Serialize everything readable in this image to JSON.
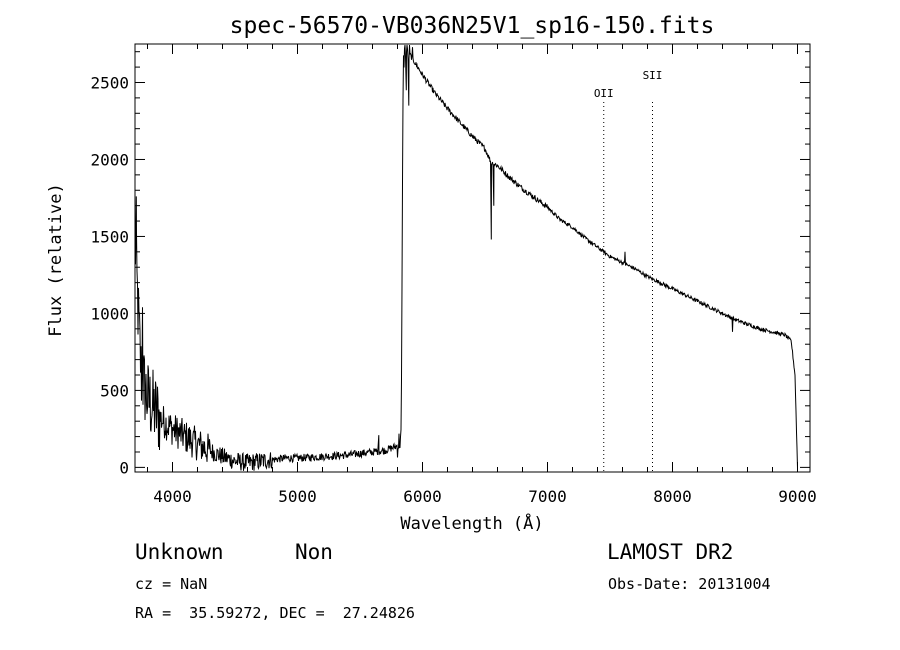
{
  "chart_data": {
    "type": "line",
    "title": "spec-56570-VB036N25V1_sp16-150.fits",
    "xlabel": "Wavelength (Å)",
    "ylabel": "Flux (relative)",
    "xlim": [
      3700,
      9100
    ],
    "ylim": [
      -30,
      2750
    ],
    "xticks": [
      4000,
      5000,
      6000,
      7000,
      8000,
      9000
    ],
    "yticks": [
      0,
      500,
      1000,
      1500,
      2000,
      2500
    ],
    "grid": false,
    "legend": "none",
    "line_color": "#000000",
    "anchors": [
      [
        3700,
        1500
      ],
      [
        3720,
        1100
      ],
      [
        3750,
        600
      ],
      [
        3800,
        450
      ],
      [
        3850,
        380
      ],
      [
        3900,
        320
      ],
      [
        4000,
        250
      ],
      [
        4100,
        200
      ],
      [
        4200,
        150
      ],
      [
        4300,
        110
      ],
      [
        4400,
        70
      ],
      [
        4500,
        40
      ],
      [
        4600,
        30
      ],
      [
        4700,
        40
      ],
      [
        4800,
        50
      ],
      [
        4900,
        60
      ],
      [
        5000,
        60
      ],
      [
        5100,
        65
      ],
      [
        5200,
        70
      ],
      [
        5300,
        75
      ],
      [
        5400,
        80
      ],
      [
        5500,
        90
      ],
      [
        5600,
        100
      ],
      [
        5700,
        110
      ],
      [
        5800,
        140
      ],
      [
        5830,
        200
      ],
      [
        5845,
        2600
      ],
      [
        5860,
        2730
      ],
      [
        5880,
        2700
      ],
      [
        5900,
        2680
      ],
      [
        6000,
        2550
      ],
      [
        6100,
        2430
      ],
      [
        6200,
        2330
      ],
      [
        6300,
        2240
      ],
      [
        6400,
        2150
      ],
      [
        6500,
        2070
      ],
      [
        6550,
        1980
      ],
      [
        6600,
        1960
      ],
      [
        6700,
        1880
      ],
      [
        6800,
        1810
      ],
      [
        6900,
        1750
      ],
      [
        7000,
        1690
      ],
      [
        7100,
        1610
      ],
      [
        7200,
        1560
      ],
      [
        7300,
        1490
      ],
      [
        7400,
        1430
      ],
      [
        7500,
        1370
      ],
      [
        7600,
        1330
      ],
      [
        7700,
        1290
      ],
      [
        7800,
        1240
      ],
      [
        7900,
        1200
      ],
      [
        8000,
        1160
      ],
      [
        8100,
        1120
      ],
      [
        8200,
        1080
      ],
      [
        8300,
        1040
      ],
      [
        8400,
        1000
      ],
      [
        8500,
        960
      ],
      [
        8600,
        930
      ],
      [
        8700,
        900
      ],
      [
        8800,
        880
      ],
      [
        8900,
        860
      ],
      [
        8950,
        820
      ],
      [
        8980,
        600
      ],
      [
        9000,
        0
      ]
    ],
    "features": [
      [
        3710,
        1760
      ],
      [
        3760,
        1040
      ],
      [
        5650,
        210
      ],
      [
        5870,
        2450
      ],
      [
        5890,
        2350
      ],
      [
        5920,
        2730
      ],
      [
        6550,
        1480
      ],
      [
        6570,
        1700
      ],
      [
        7620,
        1400
      ],
      [
        8480,
        880
      ]
    ],
    "annotations": [
      {
        "label": "OII",
        "x": 7450
      },
      {
        "label": "SII",
        "x": 7840
      }
    ]
  },
  "footer": {
    "object_class": "Unknown",
    "subclass": "Non",
    "survey": "LAMOST DR2",
    "cz": "cz = NaN",
    "obs_date": "Obs-Date: 20131004",
    "coords": "RA =  35.59272, DEC =  27.24826"
  }
}
